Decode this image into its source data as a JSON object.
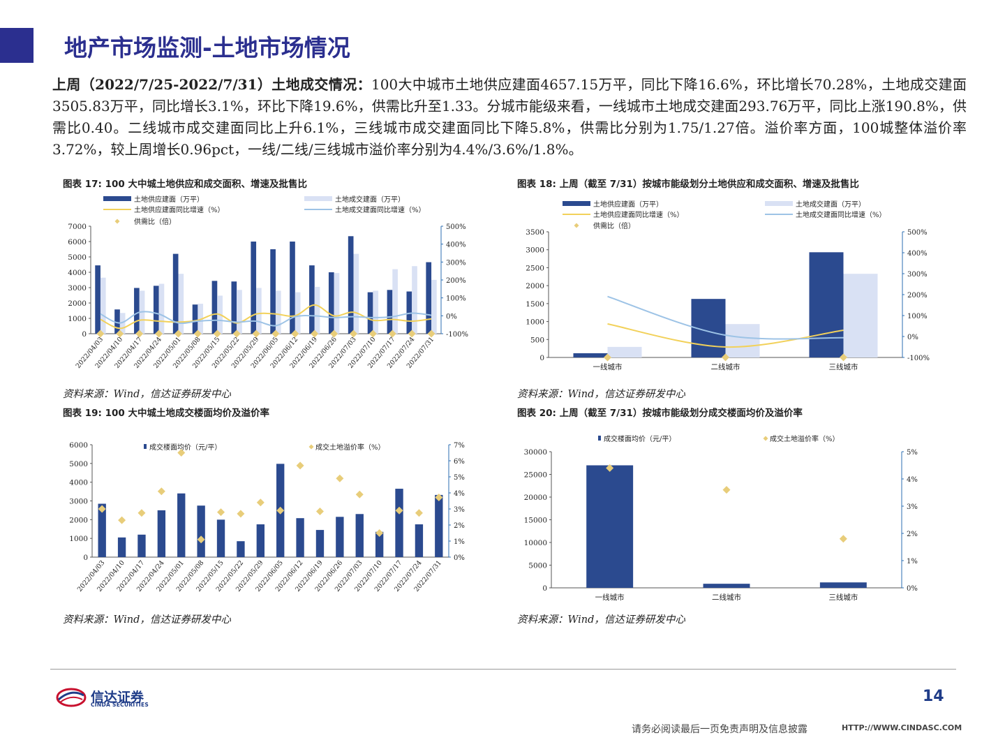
{
  "header": {
    "title": "地产市场监测-土地市场情况"
  },
  "summary": {
    "lead": "上周（2022/7/25-2022/7/31）土地成交情况：",
    "text": "100大中城市土地供应建面4657.15万平，同比下降16.6%，环比增长70.28%，土地成交建面3505.83万平，同比增长3.1%，环比下降19.6%，供需比升至1.33。分城市能级来看，一线城市土地成交建面293.76万平，同比上涨190.8%，供需比0.40。二线城市成交建面同比上升6.1%，三线城市成交建面同比下降5.8%，供需比分别为1.75/1.27倍。溢价率方面，100城整体溢价率3.72%，较上周增长0.96pct，一线/二线/三线城市溢价率分别为4.4%/3.6%/1.8%。"
  },
  "colors": {
    "navy": "#2b4a8f",
    "light": "#d9e1f4",
    "yellow": "#f2d15a",
    "lineblue": "#9dc3e6",
    "diamond": "#e8cd7a",
    "title": "#2b2f8f"
  },
  "figures": {
    "fig17_title": "图表 17:  100 大中城土地供应和成交面积、增速及批售比",
    "fig18_title": "图表 18:  上周（截至 7/31）按城市能级划分土地供应和成交面积、增速及批售比",
    "fig19_title": "图表 19:  100 大中城土地成交楼面均价及溢价率",
    "fig20_title": "图表 20:  上周（截至 7/31）按城市能级划分成交楼面均价及溢价率",
    "source": "资料来源：Wind，信达证券研发中心"
  },
  "chart_data": [
    {
      "id": "fig17",
      "type": "bar",
      "categories": [
        "2022/04/03",
        "2022/04/10",
        "2022/04/17",
        "2022/04/24",
        "2022/05/01",
        "2022/05/08",
        "2022/05/15",
        "2022/05/22",
        "2022/05/29",
        "2022/06/05",
        "2022/06/12",
        "2022/06/19",
        "2022/06/26",
        "2022/07/03",
        "2022/07/10",
        "2022/07/17",
        "2022/07/24",
        "2022/07/31"
      ],
      "legend": [
        "土地供应建面（万平）",
        "土地成交建面（万平）",
        "土地供应建面同比增速（%）",
        "土地成交建面同比增速（%）",
        "供需比（倍）"
      ],
      "series": [
        {
          "name": "土地供应建面（万平）",
          "kind": "bar",
          "values": [
            4450,
            1580,
            2980,
            3120,
            5200,
            1900,
            3440,
            3400,
            6000,
            5500,
            6000,
            4450,
            4000,
            6350,
            2700,
            2850,
            2750,
            4657
          ]
        },
        {
          "name": "土地成交建面（万平）",
          "kind": "bar",
          "values": [
            3650,
            1350,
            2800,
            3250,
            3900,
            1950,
            2480,
            2850,
            2980,
            2800,
            2700,
            3050,
            3950,
            5200,
            2800,
            4200,
            4400,
            3506
          ]
        },
        {
          "name": "土地供应建面同比增速（%）",
          "kind": "line",
          "axis": "right",
          "values": [
            -20,
            -70,
            -25,
            -30,
            -35,
            -25,
            10,
            -40,
            10,
            10,
            0,
            60,
            0,
            20,
            -25,
            -20,
            -30,
            -17
          ]
        },
        {
          "name": "土地成交建面同比增速（%）",
          "kind": "line",
          "axis": "right",
          "values": [
            10,
            -40,
            20,
            10,
            -40,
            -30,
            -25,
            -35,
            -30,
            -55,
            -5,
            0,
            -10,
            -5,
            -10,
            -5,
            15,
            3
          ]
        },
        {
          "name": "供需比（倍）",
          "kind": "scatter",
          "axis": "left",
          "values": [
            1.2,
            1.2,
            1.05,
            0.95,
            1.35,
            0.95,
            1.4,
            1.2,
            2.0,
            1.95,
            2.25,
            1.45,
            1.0,
            1.2,
            0.95,
            0.65,
            0.6,
            1.33
          ]
        }
      ],
      "ylim": [
        0,
        7000
      ],
      "yticks": [
        0,
        1000,
        2000,
        3000,
        4000,
        5000,
        6000,
        7000
      ],
      "y2lim": [
        -100,
        500
      ],
      "y2ticks": [
        "-100%",
        "0%",
        "100%",
        "200%",
        "300%",
        "400%",
        "500%"
      ]
    },
    {
      "id": "fig18",
      "type": "bar",
      "categories": [
        "一线城市",
        "二线城市",
        "三线城市"
      ],
      "legend": [
        "土地供应建面（万平）",
        "土地成交建面（万平）",
        "土地供应建面同比增速（%）",
        "土地成交建面同比增速（%）",
        "供需比（倍）"
      ],
      "series": [
        {
          "name": "土地供应建面（万平）",
          "kind": "bar",
          "values": [
            118,
            1630,
            2930
          ]
        },
        {
          "name": "土地成交建面（万平）",
          "kind": "bar",
          "values": [
            294,
            930,
            2330
          ]
        },
        {
          "name": "土地供应建面同比增速（%）",
          "kind": "line",
          "axis": "right",
          "values": [
            60,
            -50,
            30
          ]
        },
        {
          "name": "土地成交建面同比增速（%）",
          "kind": "line",
          "axis": "right",
          "values": [
            191,
            6.1,
            -5.8
          ]
        },
        {
          "name": "供需比（倍）",
          "kind": "scatter",
          "axis": "left",
          "values": [
            0.4,
            1.75,
            1.27
          ]
        }
      ],
      "ylim": [
        0,
        3500
      ],
      "yticks": [
        0,
        500,
        1000,
        1500,
        2000,
        2500,
        3000,
        3500
      ],
      "y2lim": [
        -100,
        500
      ],
      "y2ticks": [
        "-100%",
        "0%",
        "100%",
        "200%",
        "300%",
        "400%",
        "500%"
      ]
    },
    {
      "id": "fig19",
      "type": "bar",
      "categories": [
        "2022/04/03",
        "2022/04/10",
        "2022/04/17",
        "2022/04/24",
        "2022/05/01",
        "2022/05/08",
        "2022/05/15",
        "2022/05/22",
        "2022/05/29",
        "2022/06/05",
        "2022/06/12",
        "2022/06/19",
        "2022/06/26",
        "2022/07/03",
        "2022/07/10",
        "2022/07/17",
        "2022/07/24",
        "2022/07/31"
      ],
      "legend": [
        "成交楼面均价（元/平）",
        "成交土地溢价率（%）"
      ],
      "series": [
        {
          "name": "成交楼面均价（元/平）",
          "kind": "bar",
          "values": [
            2850,
            1050,
            1200,
            2500,
            3400,
            2750,
            2000,
            850,
            1750,
            4980,
            2080,
            1450,
            2150,
            2300,
            1350,
            3650,
            1750,
            3320
          ]
        },
        {
          "name": "成交土地溢价率（%）",
          "kind": "scatter",
          "axis": "right",
          "values": [
            3.0,
            2.3,
            2.75,
            4.1,
            6.5,
            1.1,
            2.8,
            2.7,
            3.4,
            2.9,
            5.7,
            2.85,
            4.9,
            3.9,
            1.5,
            2.9,
            2.75,
            3.72
          ]
        }
      ],
      "ylim": [
        0,
        6000
      ],
      "yticks": [
        0,
        1000,
        2000,
        3000,
        4000,
        5000,
        6000
      ],
      "y2lim": [
        0,
        7
      ],
      "y2ticks": [
        "0%",
        "1%",
        "2%",
        "3%",
        "4%",
        "5%",
        "6%",
        "7%"
      ]
    },
    {
      "id": "fig20",
      "type": "bar",
      "categories": [
        "一线城市",
        "二线城市",
        "三线城市"
      ],
      "legend": [
        "成交楼面均价（元/平）",
        "成交土地溢价率（%）"
      ],
      "series": [
        {
          "name": "成交楼面均价（元/平）",
          "kind": "bar",
          "values": [
            27000,
            900,
            1200
          ]
        },
        {
          "name": "成交土地溢价率（%）",
          "kind": "scatter",
          "axis": "right",
          "values": [
            4.4,
            3.6,
            1.8
          ]
        }
      ],
      "ylim": [
        0,
        30000
      ],
      "yticks": [
        0,
        5000,
        10000,
        15000,
        20000,
        25000,
        30000
      ],
      "y2lim": [
        0,
        5
      ],
      "y2ticks": [
        "0%",
        "1%",
        "2%",
        "3%",
        "4%",
        "5%"
      ]
    }
  ],
  "footer": {
    "logo_cn": "信达证券",
    "logo_en": "CINDA SECURITIES",
    "page": "14",
    "disclaimer": "请务必阅读最后一页免责声明及信息披露",
    "website": "HTTP://WWW.CINDASC.COM"
  }
}
